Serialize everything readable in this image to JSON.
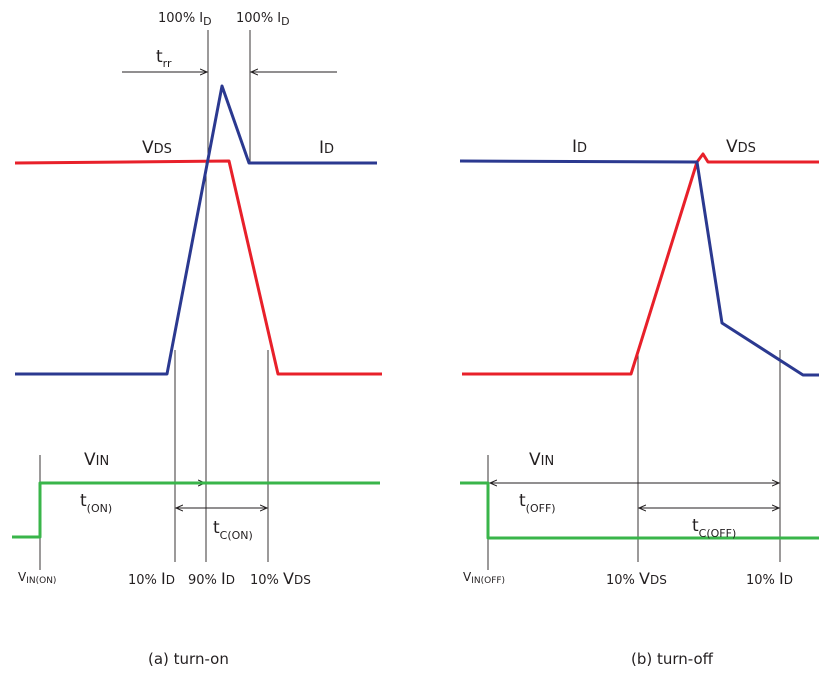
{
  "colors": {
    "vds": "#e8202a",
    "id": "#2b3990",
    "vin": "#39b54a",
    "guide": "#231f20"
  },
  "turn_on": {
    "top_label_left": {
      "main": "100% I",
      "sub": "D"
    },
    "top_label_right": {
      "main": "100% I",
      "sub": "D"
    },
    "trr": {
      "main": "t",
      "sub": "rr"
    },
    "vds": {
      "main": "V",
      "sub": "DS"
    },
    "id": {
      "main": "I",
      "sub": "D"
    },
    "vin": {
      "main": "V",
      "sub": "IN"
    },
    "t_on": {
      "main": "t",
      "sub": "(ON)"
    },
    "tc_on": {
      "main": "t",
      "sub": "C(ON)"
    },
    "vin_on": {
      "main": "V",
      "sub": "IN(ON)"
    },
    "b10_id": {
      "pre": "10% ",
      "main": "I",
      "sub": "D"
    },
    "b90_id": {
      "pre": "90% ",
      "main": "I",
      "sub": "D"
    },
    "b10_vds": {
      "pre": "10% ",
      "main": "V",
      "sub": "DS"
    },
    "caption": "(a) turn-on"
  },
  "turn_off": {
    "id": {
      "main": "I",
      "sub": "D"
    },
    "vds": {
      "main": "V",
      "sub": "DS"
    },
    "vin": {
      "main": "V",
      "sub": "IN"
    },
    "t_off": {
      "main": "t",
      "sub": "(OFF)"
    },
    "tc_off": {
      "main": "t",
      "sub": "C(OFF)"
    },
    "vin_off": {
      "main": "V",
      "sub": "IN(OFF)"
    },
    "b10_vds": {
      "pre": "10% ",
      "main": "V",
      "sub": "DS"
    },
    "b10_id": {
      "pre": "10% ",
      "main": "I",
      "sub": "D"
    },
    "caption": "(b) turn-off"
  }
}
